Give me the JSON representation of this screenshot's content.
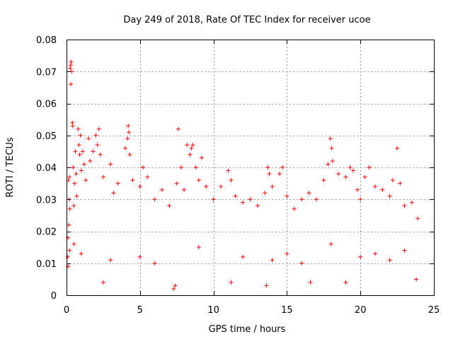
{
  "chart_data": {
    "type": "scatter",
    "title": "Day 249 of 2018, Rate Of TEC Index for receiver ucoe",
    "xlabel": "GPS time / hours",
    "ylabel": "ROTI / TECUs",
    "xlim": [
      0,
      25
    ],
    "ylim": [
      0,
      0.08
    ],
    "x_ticks": [
      0,
      5,
      10,
      15,
      20,
      25
    ],
    "y_ticks": [
      0,
      0.01,
      0.02,
      0.03,
      0.04,
      0.05,
      0.06,
      0.07,
      0.08
    ],
    "x_tick_labels": [
      "0",
      "5",
      "10",
      "15",
      "20",
      "25"
    ],
    "y_tick_labels": [
      "0",
      "0.01",
      "0.02",
      "0.03",
      "0.04",
      "0.05",
      "0.06",
      "0.07",
      "0.08"
    ],
    "grid": true,
    "marker": "+",
    "marker_color": "#ff0000",
    "series": [
      {
        "name": "ROTI",
        "points": [
          [
            0.08,
            0.012
          ],
          [
            0.1,
            0.018
          ],
          [
            0.12,
            0.036
          ],
          [
            0.15,
            0.022
          ],
          [
            0.18,
            0.03
          ],
          [
            0.2,
            0.037
          ],
          [
            0.22,
            0.027
          ],
          [
            0.25,
            0.071
          ],
          [
            0.28,
            0.072
          ],
          [
            0.3,
            0.066
          ],
          [
            0.32,
            0.073
          ],
          [
            0.35,
            0.07
          ],
          [
            0.4,
            0.054
          ],
          [
            0.42,
            0.053
          ],
          [
            0.45,
            0.04
          ],
          [
            0.5,
            0.028
          ],
          [
            0.55,
            0.035
          ],
          [
            0.6,
            0.045
          ],
          [
            0.65,
            0.038
          ],
          [
            0.7,
            0.031
          ],
          [
            0.8,
            0.052
          ],
          [
            0.85,
            0.047
          ],
          [
            0.9,
            0.044
          ],
          [
            0.95,
            0.05
          ],
          [
            1.0,
            0.039
          ],
          [
            1.1,
            0.045
          ],
          [
            1.2,
            0.041
          ],
          [
            1.3,
            0.036
          ],
          [
            1.5,
            0.049
          ],
          [
            1.6,
            0.042
          ],
          [
            1.8,
            0.045
          ],
          [
            2.0,
            0.05
          ],
          [
            2.1,
            0.047
          ],
          [
            2.2,
            0.052
          ],
          [
            2.3,
            0.044
          ],
          [
            2.5,
            0.037
          ],
          [
            3.0,
            0.041
          ],
          [
            3.2,
            0.032
          ],
          [
            3.5,
            0.035
          ],
          [
            4.0,
            0.046
          ],
          [
            4.15,
            0.049
          ],
          [
            4.2,
            0.053
          ],
          [
            4.25,
            0.051
          ],
          [
            4.3,
            0.044
          ],
          [
            4.5,
            0.036
          ],
          [
            5.0,
            0.034
          ],
          [
            5.2,
            0.04
          ],
          [
            5.5,
            0.037
          ],
          [
            6.0,
            0.03
          ],
          [
            6.5,
            0.033
          ],
          [
            7.0,
            0.028
          ],
          [
            7.5,
            0.035
          ],
          [
            7.6,
            0.052
          ],
          [
            7.8,
            0.04
          ],
          [
            8.0,
            0.033
          ],
          [
            8.2,
            0.047
          ],
          [
            8.4,
            0.044
          ],
          [
            8.5,
            0.046
          ],
          [
            8.6,
            0.047
          ],
          [
            8.8,
            0.04
          ],
          [
            9.0,
            0.036
          ],
          [
            9.2,
            0.043
          ],
          [
            9.5,
            0.034
          ],
          [
            10.0,
            0.03
          ],
          [
            10.5,
            0.034
          ],
          [
            11.0,
            0.039
          ],
          [
            11.2,
            0.036
          ],
          [
            11.5,
            0.031
          ],
          [
            12.0,
            0.029
          ],
          [
            12.5,
            0.03
          ],
          [
            13.0,
            0.028
          ],
          [
            13.5,
            0.032
          ],
          [
            13.7,
            0.04
          ],
          [
            13.8,
            0.038
          ],
          [
            14.0,
            0.034
          ],
          [
            14.5,
            0.038
          ],
          [
            14.7,
            0.04
          ],
          [
            15.0,
            0.031
          ],
          [
            15.5,
            0.027
          ],
          [
            16.0,
            0.03
          ],
          [
            16.5,
            0.032
          ],
          [
            17.0,
            0.03
          ],
          [
            17.5,
            0.036
          ],
          [
            17.8,
            0.041
          ],
          [
            17.95,
            0.049
          ],
          [
            18.05,
            0.046
          ],
          [
            18.1,
            0.042
          ],
          [
            18.5,
            0.038
          ],
          [
            19.0,
            0.037
          ],
          [
            19.3,
            0.04
          ],
          [
            19.5,
            0.039
          ],
          [
            19.8,
            0.033
          ],
          [
            20.0,
            0.03
          ],
          [
            20.3,
            0.037
          ],
          [
            20.6,
            0.04
          ],
          [
            21.0,
            0.034
          ],
          [
            21.5,
            0.033
          ],
          [
            22.0,
            0.031
          ],
          [
            22.2,
            0.036
          ],
          [
            22.5,
            0.046
          ],
          [
            22.7,
            0.035
          ],
          [
            23.0,
            0.028
          ],
          [
            23.5,
            0.029
          ],
          [
            23.9,
            0.024
          ],
          [
            7.3,
            0.002
          ],
          [
            7.4,
            0.003
          ],
          [
            13.6,
            0.003
          ],
          [
            11.2,
            0.004
          ],
          [
            19.0,
            0.004
          ],
          [
            2.5,
            0.004
          ],
          [
            16.6,
            0.004
          ],
          [
            23.8,
            0.005
          ],
          [
            0.1,
            0.009
          ],
          [
            0.2,
            0.014
          ],
          [
            0.5,
            0.016
          ],
          [
            1.0,
            0.013
          ],
          [
            3.0,
            0.011
          ],
          [
            5.0,
            0.012
          ],
          [
            6.0,
            0.01
          ],
          [
            9.0,
            0.015
          ],
          [
            12.0,
            0.012
          ],
          [
            14.0,
            0.011
          ],
          [
            15.0,
            0.013
          ],
          [
            16.0,
            0.01
          ],
          [
            18.0,
            0.016
          ],
          [
            20.0,
            0.012
          ],
          [
            21.0,
            0.013
          ],
          [
            22.0,
            0.011
          ],
          [
            23.0,
            0.014
          ]
        ]
      }
    ]
  }
}
